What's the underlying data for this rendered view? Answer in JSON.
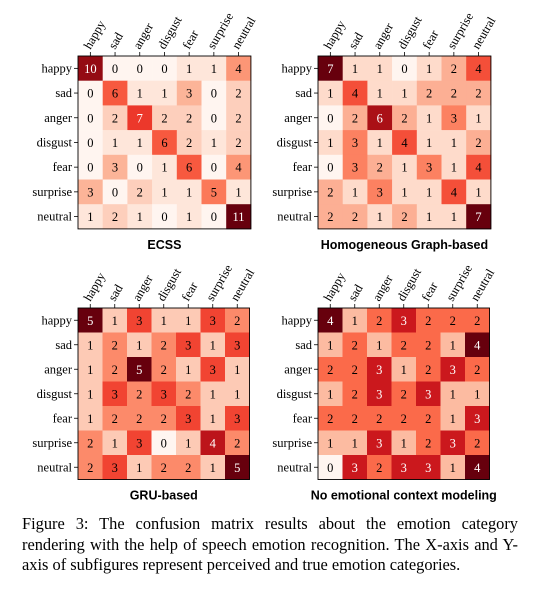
{
  "chart_data": [
    {
      "type": "heatmap",
      "title": "ECSS",
      "categories": [
        "happy",
        "sad",
        "anger",
        "disgust",
        "fear",
        "surprise",
        "neutral"
      ],
      "values": [
        [
          10,
          0,
          0,
          0,
          1,
          1,
          4
        ],
        [
          0,
          6,
          1,
          1,
          3,
          0,
          2
        ],
        [
          0,
          2,
          7,
          2,
          2,
          0,
          2
        ],
        [
          0,
          1,
          1,
          6,
          2,
          1,
          2
        ],
        [
          0,
          3,
          0,
          1,
          6,
          0,
          4
        ],
        [
          3,
          0,
          2,
          1,
          1,
          5,
          1
        ],
        [
          1,
          2,
          1,
          0,
          1,
          0,
          11
        ]
      ],
      "xlabel": "",
      "ylabel": "",
      "colormap": "Reds"
    },
    {
      "type": "heatmap",
      "title": "Homogeneous Graph-based",
      "categories": [
        "happy",
        "sad",
        "anger",
        "disgust",
        "fear",
        "surprise",
        "neutral"
      ],
      "values": [
        [
          7,
          1,
          1,
          0,
          1,
          2,
          4
        ],
        [
          1,
          4,
          1,
          1,
          2,
          2,
          2
        ],
        [
          0,
          2,
          6,
          2,
          1,
          3,
          1
        ],
        [
          1,
          3,
          1,
          4,
          1,
          1,
          2
        ],
        [
          0,
          3,
          2,
          1,
          3,
          1,
          4
        ],
        [
          2,
          1,
          3,
          1,
          1,
          4,
          1
        ],
        [
          2,
          2,
          1,
          2,
          1,
          1,
          7
        ]
      ],
      "xlabel": "",
      "ylabel": "",
      "colormap": "Reds"
    },
    {
      "type": "heatmap",
      "title": "GRU-based",
      "categories": [
        "happy",
        "sad",
        "anger",
        "disgust",
        "fear",
        "surprise",
        "neutral"
      ],
      "values": [
        [
          5,
          1,
          3,
          1,
          1,
          3,
          2
        ],
        [
          1,
          2,
          1,
          2,
          3,
          1,
          3
        ],
        [
          1,
          2,
          5,
          2,
          1,
          3,
          1
        ],
        [
          1,
          3,
          2,
          3,
          2,
          1,
          1
        ],
        [
          1,
          2,
          2,
          2,
          3,
          1,
          3
        ],
        [
          2,
          1,
          3,
          0,
          1,
          4,
          2
        ],
        [
          2,
          3,
          1,
          2,
          2,
          1,
          5
        ]
      ],
      "xlabel": "",
      "ylabel": "",
      "colormap": "Reds"
    },
    {
      "type": "heatmap",
      "title": "No emotional context modeling",
      "categories": [
        "happy",
        "sad",
        "anger",
        "disgust",
        "fear",
        "surprise",
        "neutral"
      ],
      "values": [
        [
          4,
          1,
          2,
          3,
          2,
          2,
          2
        ],
        [
          1,
          2,
          1,
          2,
          2,
          1,
          4
        ],
        [
          2,
          2,
          3,
          1,
          2,
          3,
          2
        ],
        [
          1,
          2,
          3,
          2,
          3,
          1,
          1
        ],
        [
          2,
          2,
          2,
          2,
          2,
          1,
          3
        ],
        [
          1,
          1,
          3,
          1,
          2,
          3,
          2
        ],
        [
          0,
          3,
          2,
          3,
          3,
          1,
          4
        ]
      ],
      "xlabel": "",
      "ylabel": "",
      "colormap": "Reds"
    }
  ],
  "caption": "Figure 3: The confusion matrix results about the emotion category rendering with the help of speech emotion recognition. The X-axis and Y-axis of subfigures represent perceived and true emotion categories."
}
